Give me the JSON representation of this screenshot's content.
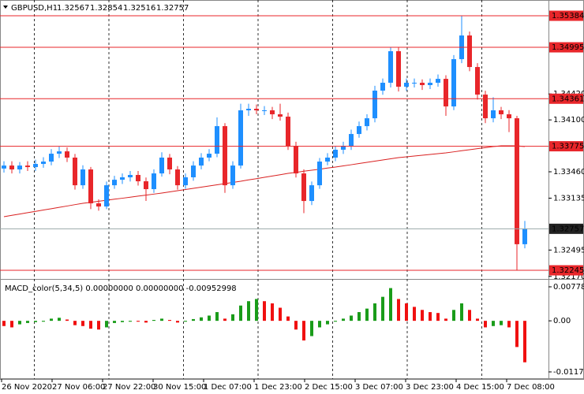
{
  "chart_data": {
    "type": "candlestick",
    "title": "GBPUSD,H1",
    "quote": [
      1.32567,
      1.32854,
      1.32516,
      1.32757
    ],
    "up_color": "#1e8fff",
    "down_color": "#e8262a",
    "open": [
      1.335,
      1.33537,
      1.33489,
      1.33537,
      1.33518,
      1.33557,
      1.33586,
      1.33683,
      1.33712,
      1.33635,
      1.33294,
      1.33489,
      1.33071,
      1.33032,
      1.33294,
      1.33362,
      1.33392,
      1.33421,
      1.33343,
      1.33246,
      1.3344,
      1.33635,
      1.33489,
      1.33294,
      1.33392,
      1.33537,
      1.33635,
      1.33683,
      1.34023,
      1.33294,
      1.33537,
      1.34218,
      1.34237,
      1.34218,
      1.34218,
      1.34169,
      1.3414,
      1.3378,
      1.3344,
      1.331,
      1.33294,
      1.33586,
      1.33635,
      1.33732,
      1.3378,
      1.33926,
      1.34023,
      1.3412,
      1.34461,
      1.34558,
      1.34947,
      1.34509,
      1.34558,
      1.34558,
      1.34529,
      1.34558,
      1.34606,
      1.34266,
      1.34849,
      1.35141,
      1.34752,
      1.34412,
      1.3412,
      1.34218,
      1.34169,
      1.3412,
      1.32567
    ],
    "high": [
      1.3359,
      1.3359,
      1.3358,
      1.3359,
      1.3361,
      1.3364,
      1.3374,
      1.3377,
      1.3376,
      1.3368,
      1.3354,
      1.3352,
      1.3312,
      1.3334,
      1.3341,
      1.3344,
      1.3347,
      1.3347,
      1.3339,
      1.3349,
      1.337,
      1.3368,
      1.3353,
      1.3344,
      1.3359,
      1.3369,
      1.3374,
      1.3413,
      1.3406,
      1.3359,
      1.343,
      1.343,
      1.3429,
      1.3427,
      1.3426,
      1.343,
      1.3419,
      1.3383,
      1.3349,
      1.3334,
      1.3363,
      1.3369,
      1.3378,
      1.3383,
      1.3398,
      1.3408,
      1.3417,
      1.3452,
      1.3461,
      1.35,
      1.3499,
      1.3461,
      1.3461,
      1.346,
      1.3461,
      1.3466,
      1.3465,
      1.349,
      1.35384,
      1.3519,
      1.348,
      1.3446,
      1.3438,
      1.3426,
      1.3422,
      1.3415,
      1.32854
    ],
    "low": [
      1.3345,
      1.3344,
      1.3344,
      1.3347,
      1.3347,
      1.3351,
      1.3354,
      1.3363,
      1.3358,
      1.3324,
      1.3325,
      1.33,
      1.3298,
      1.33,
      1.3325,
      1.3331,
      1.3334,
      1.3329,
      1.331,
      1.332,
      1.334,
      1.3343,
      1.3324,
      1.3325,
      1.3335,
      1.3349,
      1.3359,
      1.3364,
      1.332,
      1.3325,
      1.335,
      1.3415,
      1.3417,
      1.3416,
      1.3411,
      1.3409,
      1.3373,
      1.3339,
      1.3295,
      1.3305,
      1.3325,
      1.3354,
      1.3359,
      1.3368,
      1.3373,
      1.3388,
      1.3397,
      1.3407,
      1.3441,
      1.345,
      1.3445,
      1.3446,
      1.345,
      1.3447,
      1.3448,
      1.3451,
      1.3415,
      1.3422,
      1.348,
      1.347,
      1.3435,
      1.3406,
      1.3407,
      1.3411,
      1.3395,
      1.32245,
      1.32516
    ],
    "close": [
      1.33537,
      1.33489,
      1.33537,
      1.33518,
      1.33557,
      1.33586,
      1.33683,
      1.33712,
      1.33635,
      1.33294,
      1.33489,
      1.33071,
      1.33032,
      1.33294,
      1.33362,
      1.33392,
      1.33421,
      1.33343,
      1.33246,
      1.3344,
      1.33635,
      1.33489,
      1.33294,
      1.33392,
      1.33537,
      1.33635,
      1.33683,
      1.34023,
      1.33294,
      1.33537,
      1.34218,
      1.34237,
      1.34218,
      1.34218,
      1.34169,
      1.3414,
      1.3378,
      1.3344,
      1.331,
      1.33294,
      1.33586,
      1.33635,
      1.33732,
      1.3378,
      1.33926,
      1.34023,
      1.3412,
      1.34461,
      1.34558,
      1.34947,
      1.34509,
      1.34558,
      1.34558,
      1.34529,
      1.34558,
      1.34606,
      1.34266,
      1.34849,
      1.35141,
      1.34752,
      1.34412,
      1.3412,
      1.34218,
      1.34169,
      1.3412,
      1.32567,
      1.32757
    ],
    "ma": {
      "color": "#d92020",
      "values": [
        1.32906,
        1.32923,
        1.32939,
        1.32956,
        1.32972,
        1.32989,
        1.33005,
        1.33022,
        1.33038,
        1.33055,
        1.33071,
        1.33084,
        1.33097,
        1.33109,
        1.33122,
        1.33134,
        1.33147,
        1.3316,
        1.33172,
        1.33185,
        1.33198,
        1.33212,
        1.33227,
        1.33241,
        1.33256,
        1.33271,
        1.33285,
        1.333,
        1.33314,
        1.33329,
        1.33343,
        1.3336,
        1.33375,
        1.33392,
        1.33408,
        1.33424,
        1.33441,
        1.33453,
        1.33467,
        1.33479,
        1.33492,
        1.33506,
        1.33518,
        1.33533,
        1.33547,
        1.33562,
        1.33577,
        1.33591,
        1.33606,
        1.3362,
        1.33635,
        1.33645,
        1.33654,
        1.33664,
        1.33674,
        1.33684,
        1.33693,
        1.33706,
        1.3372,
        1.33732,
        1.33745,
        1.33758,
        1.33771,
        1.33781,
        1.33781,
        1.33781,
        1.33771
      ]
    },
    "levels": [
      1.35384,
      1.34995,
      1.34361,
      1.33775,
      1.32245
    ],
    "level_color": "#e8262a",
    "current_price": 1.32757,
    "ylim": [
      1.32158,
      1.35559
    ],
    "yticks": [
      {
        "value": 1.3442,
        "label": "1.34420"
      },
      {
        "value": 1.341,
        "label": "1.34100"
      },
      {
        "value": 1.3346,
        "label": "1.33460"
      },
      1.33135,
      1.32495,
      {
        "value": 1.3217,
        "label": "1.32170"
      }
    ],
    "x_labels": [
      "26 Nov 2020",
      "27 Nov 06:00",
      "27 Nov 22:00",
      "30 Nov 15:00",
      "1 Dec 07:00",
      "1 Dec 23:00",
      "2 Dec 15:00",
      "3 Dec 07:00",
      "3 Dec 23:00",
      "4 Dec 15:00",
      "7 Dec 08:00"
    ],
    "indicator": {
      "title": "MACD_color(5,34,5) 0.00000000 0.00000000 -0.00952998",
      "up_color": "#1a9c1a",
      "down_color": "#f01010",
      "values": [
        -0.0012,
        -0.0015,
        -0.0008,
        -0.0005,
        -0.0003,
        -0.0002,
        0.0005,
        0.0007,
        0.0003,
        -0.001,
        -0.0012,
        -0.0018,
        -0.002,
        -0.0015,
        -0.0005,
        -0.0003,
        -0.0002,
        -0.0002,
        -0.0004,
        0.0002,
        0.0005,
        0.0002,
        -0.0004,
        -0.0002,
        0.0004,
        0.0008,
        0.0012,
        0.002,
        0.0005,
        0.0015,
        0.0035,
        0.0045,
        0.005,
        0.0045,
        0.004,
        0.003,
        0.001,
        -0.002,
        -0.0045,
        -0.0035,
        -0.0015,
        -0.0008,
        -0.0002,
        0.0005,
        0.0012,
        0.002,
        0.0028,
        0.004,
        0.0055,
        0.0075,
        0.005,
        0.004,
        0.0032,
        0.0025,
        0.002,
        0.0018,
        0.0005,
        0.0025,
        0.004,
        0.0025,
        0.0005,
        -0.0015,
        -0.0012,
        -0.001,
        -0.0015,
        -0.006,
        -0.0095
      ],
      "ylim": [
        -0.01279,
        0.00905
      ],
      "yticks": [
        0.0077894,
        {
          "value": 0,
          "label": "0.00"
        },
        -0.011702
      ]
    }
  }
}
